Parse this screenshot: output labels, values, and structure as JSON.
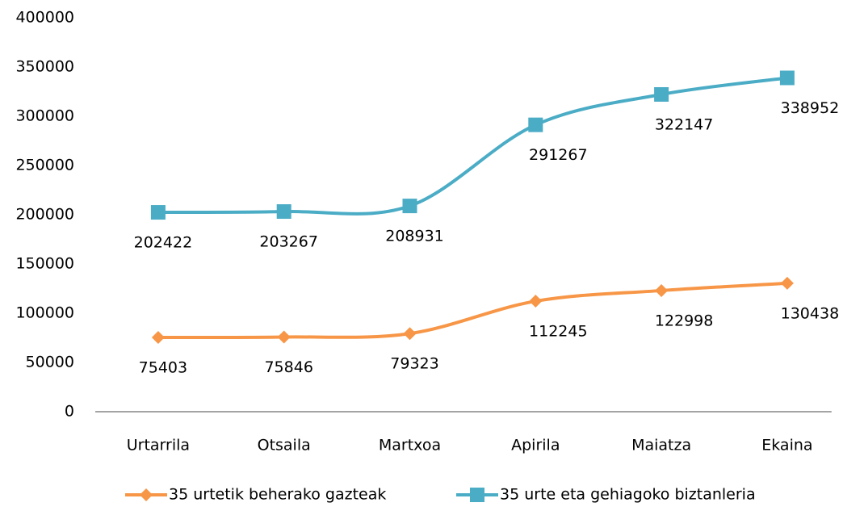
{
  "chart_data": {
    "type": "line",
    "categories": [
      "Urtarrila",
      "Otsaila",
      "Martxoa",
      "Apirila",
      "Maiatza",
      "Ekaina"
    ],
    "series": [
      {
        "name": "35 urtetik beherako gazteak",
        "color": "#f79646",
        "marker": "diamond",
        "values": [
          75403,
          75846,
          79323,
          112245,
          122998,
          130438
        ]
      },
      {
        "name": "35 urte eta gehiagoko biztanleria",
        "color": "#4bacc6",
        "marker": "square",
        "values": [
          202422,
          203267,
          208931,
          291267,
          322147,
          338952
        ]
      }
    ],
    "ylim": [
      0,
      400000
    ],
    "yticks": [
      0,
      50000,
      100000,
      150000,
      200000,
      250000,
      300000,
      350000,
      400000
    ],
    "grid": false,
    "smooth": true,
    "legend": "bottom"
  }
}
